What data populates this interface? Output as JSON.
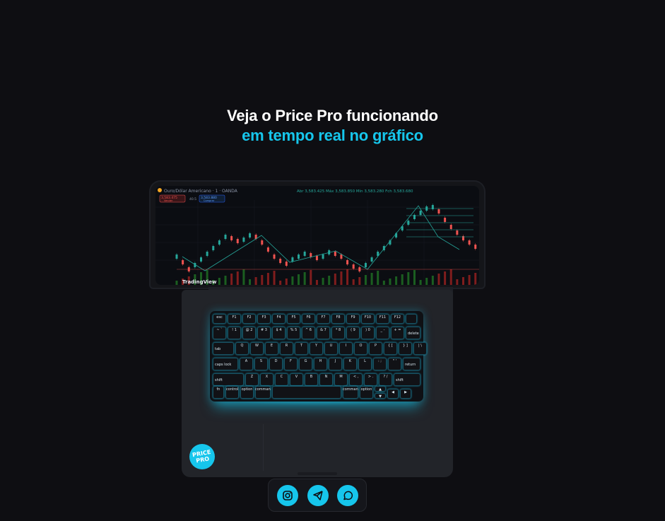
{
  "hero": {
    "line1": "Veja o Price Pro funcionando",
    "line2": "em tempo real no gráfico"
  },
  "screen": {
    "symbol": "Ouro/Dólar Americano · 1 · OANDA",
    "ohlc": "Abr 3,583.425 Máx 3,583.850 Mín 3,583.280 Fch 3,583.680",
    "sell_price": "3,583.475",
    "buy_price": "3,583.880",
    "sell_label": "Vender",
    "buy_label": "Comprar",
    "spread": "40.5",
    "brand": "TradingView",
    "accent_up": "#26a69a",
    "accent_down": "#ef5350"
  },
  "keyboard": {
    "fn_row": [
      "esc",
      "F1",
      "F2",
      "F3",
      "F4",
      "F5",
      "F6",
      "F7",
      "F8",
      "F9",
      "F10",
      "F11",
      "F12"
    ],
    "num_row": [
      "~ `",
      "! 1",
      "@ 2",
      "# 3",
      "$ 4",
      "% 5",
      "^ 6",
      "& 7",
      "* 8",
      "( 9",
      ") 0",
      "_ -",
      "+ ="
    ],
    "num_row_end": "delete",
    "q_row_start": "tab",
    "q_row": [
      "Q",
      "W",
      "E",
      "R",
      "T",
      "Y",
      "U",
      "I",
      "O",
      "P",
      "{ [",
      "} ]",
      "| \\"
    ],
    "a_row_start": "caps lock",
    "a_row": [
      "A",
      "S",
      "D",
      "F",
      "G",
      "H",
      "J",
      "K",
      "L",
      ": ;",
      "\" '"
    ],
    "a_row_end": "return",
    "z_row_start": "shift",
    "z_row": [
      "Z",
      "X",
      "C",
      "V",
      "B",
      "N",
      "M",
      "< ,",
      "> .",
      "? /"
    ],
    "z_row_end": "shift",
    "bottom_row": [
      "fn",
      "control",
      "option",
      "command",
      "",
      "command",
      "option"
    ]
  },
  "logo": {
    "text": "PRICE PRO"
  },
  "social": {
    "items": [
      {
        "icon": "instagram-icon",
        "label": "Instagram"
      },
      {
        "icon": "telegram-icon",
        "label": "Telegram"
      },
      {
        "icon": "whatsapp-icon",
        "label": "WhatsApp"
      }
    ],
    "accent": "#16c6ec"
  }
}
